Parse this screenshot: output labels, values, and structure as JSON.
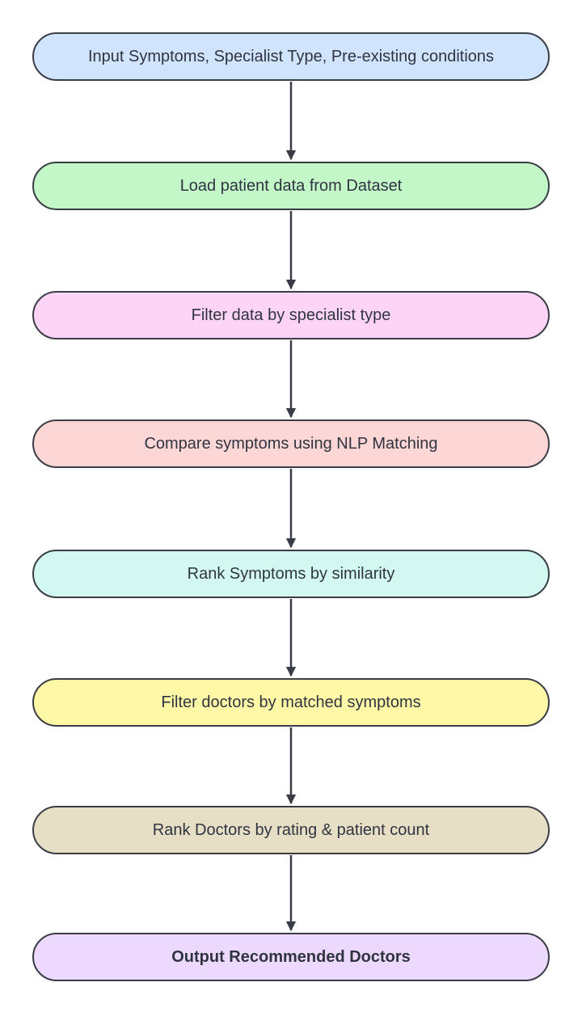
{
  "steps": [
    {
      "label": "Input Symptoms, Specialist Type, Pre-existing conditions",
      "color": "#d1e4fd"
    },
    {
      "label": "Load patient data from Dataset",
      "color": "#c3f7c8"
    },
    {
      "label": "Filter data by specialist type",
      "color": "#fed4f6"
    },
    {
      "label": "Compare symptoms using NLP Matching",
      "color": "#fdd6d6"
    },
    {
      "label": "Rank Symptoms by similarity",
      "color": "#d3f8f2"
    },
    {
      "label": "Filter doctors by matched symptoms",
      "color": "#fff9a7"
    },
    {
      "label": "Rank Doctors by rating & patient count",
      "color": "#e6dfc6"
    },
    {
      "label": "Output Recommended Doctors",
      "color": "#eed9fe"
    }
  ],
  "colors": {
    "border": "#3a3d46",
    "arrow": "#3a3d46",
    "text": "#2f3440"
  }
}
